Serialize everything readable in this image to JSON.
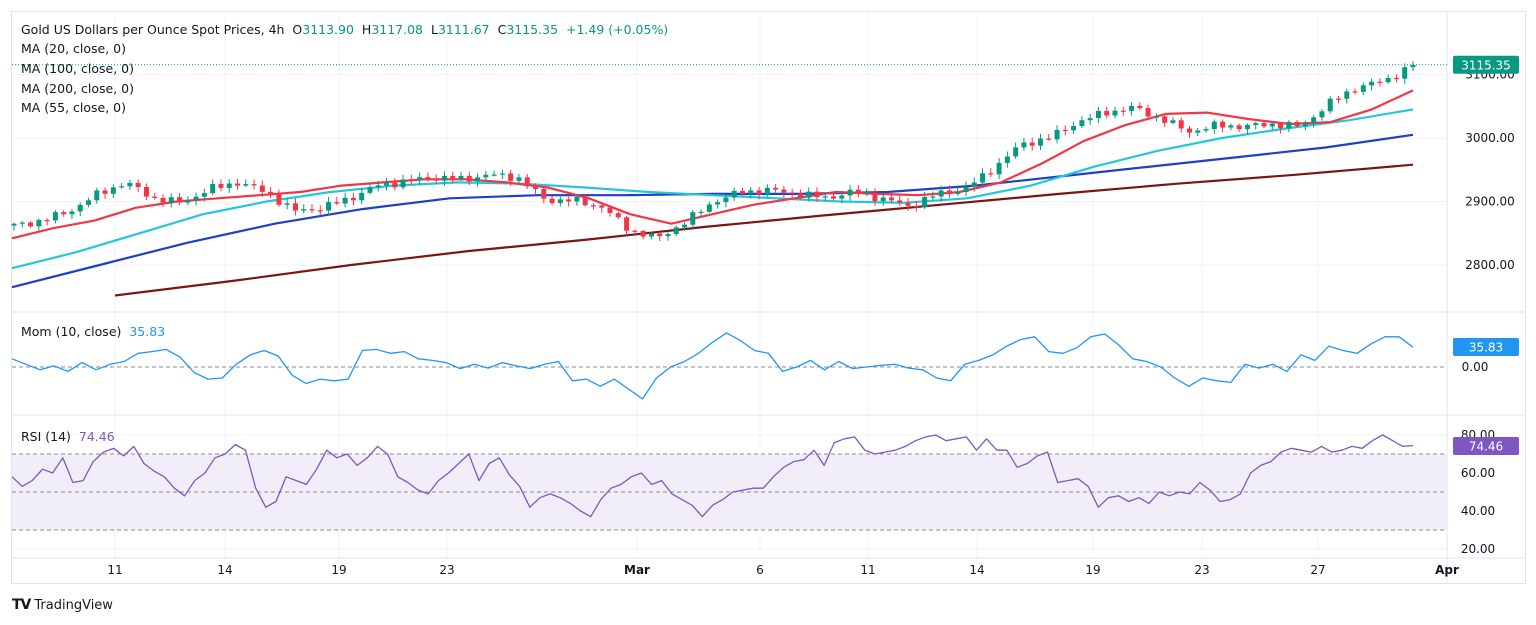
{
  "header": {
    "title": "Gold US Dollars per Ounce Spot Prices, 4h",
    "open_label": "O",
    "open": "3113.90",
    "high_label": "H",
    "high": "3117.08",
    "low_label": "L",
    "low": "3111.67",
    "close_label": "C",
    "close": "3115.35",
    "change": "+1.49 (+0.05%)"
  },
  "indicators": {
    "ma20": "MA (20, close, 0)",
    "ma100": "MA (100, close, 0)",
    "ma200": "MA (200, close, 0)",
    "ma55": "MA (55, close, 0)",
    "mom_label": "Mom (10, close)",
    "mom_value": "35.83",
    "rsi_label": "RSI (14)",
    "rsi_value": "74.46"
  },
  "colors": {
    "up": "#089981",
    "down": "#f23645",
    "ma20": "#f23645",
    "ma55": "#26c6da",
    "ma100": "#1e3fc8",
    "ma200": "#7b1416",
    "mom": "#2196f3",
    "rsi": "#7e57c2",
    "rsi_band": "#ede7f6"
  },
  "brand": {
    "name": "TradingView"
  },
  "chart_data": {
    "type": "line",
    "title": "Gold US Dollars per Ounce Spot Prices, 4h",
    "price_axis": {
      "ticks": [
        "2800.00",
        "2900.00",
        "3000.00",
        "3100.00"
      ],
      "ylim": [
        2770,
        3160
      ],
      "last_price": "3115.35"
    },
    "mom_axis": {
      "ticks": [
        "0.00"
      ],
      "last_value": "35.83"
    },
    "rsi_axis": {
      "ticks": [
        "20.00",
        "40.00",
        "60.00",
        "80.00"
      ],
      "levels": [
        30,
        50,
        70
      ],
      "last_value": "74.46"
    },
    "x_ticks": [
      "11",
      "14",
      "19",
      "23",
      "Mar",
      "6",
      "11",
      "14",
      "19",
      "23",
      "27",
      "Apr"
    ],
    "x_ticks_bold": [
      "Mar",
      "Apr"
    ],
    "series": [
      {
        "name": "Close (approx.)",
        "x_frac": [
          0,
          0.02,
          0.04,
          0.06,
          0.08,
          0.1,
          0.12,
          0.14,
          0.16,
          0.18,
          0.2,
          0.22,
          0.24,
          0.26,
          0.28,
          0.3,
          0.32,
          0.34,
          0.36,
          0.38,
          0.4,
          0.42,
          0.44,
          0.46,
          0.48,
          0.5,
          0.52,
          0.54,
          0.56,
          0.58,
          0.6,
          0.62,
          0.64,
          0.66,
          0.68,
          0.7,
          0.72,
          0.74,
          0.76,
          0.78,
          0.8,
          0.82,
          0.84,
          0.86,
          0.88,
          0.9,
          0.92,
          0.94,
          0.96,
          0.98,
          1.0
        ],
        "values": [
          2862,
          2870,
          2885,
          2912,
          2930,
          2905,
          2898,
          2920,
          2930,
          2915,
          2885,
          2890,
          2905,
          2925,
          2932,
          2938,
          2935,
          2942,
          2938,
          2902,
          2902,
          2892,
          2855,
          2842,
          2868,
          2900,
          2915,
          2918,
          2912,
          2906,
          2915,
          2905,
          2892,
          2912,
          2920,
          2952,
          2990,
          3000,
          3025,
          3040,
          3048,
          3030,
          3010,
          3020,
          3018,
          3022,
          3018,
          3055,
          3080,
          3090,
          3115
        ]
      },
      {
        "name": "MA (20)",
        "values": [
          2842,
          2858,
          2870,
          2890,
          2900,
          2905,
          2910,
          2915,
          2925,
          2930,
          2935,
          2935,
          2930,
          2922,
          2905,
          2880,
          2865,
          2880,
          2895,
          2905,
          2915,
          2912,
          2910,
          2915,
          2930,
          2960,
          2995,
          3020,
          3038,
          3040,
          3030,
          3022,
          3025,
          3045,
          3075
        ]
      },
      {
        "name": "MA (55)",
        "values": [
          2795,
          2820,
          2850,
          2880,
          2900,
          2915,
          2925,
          2930,
          2928,
          2922,
          2915,
          2910,
          2905,
          2900,
          2898,
          2905,
          2925,
          2955,
          2980,
          3000,
          3015,
          3028,
          3045
        ]
      },
      {
        "name": "MA (100)",
        "values": [
          2765,
          2800,
          2835,
          2865,
          2888,
          2905,
          2910,
          2910,
          2912,
          2912,
          2915,
          2925,
          2940,
          2955,
          2970,
          2985,
          3005
        ]
      },
      {
        "name": "MA (200)",
        "values": [
          2752,
          2775,
          2800,
          2822,
          2840,
          2860,
          2878,
          2895,
          2912,
          2928,
          2942,
          2958
        ]
      },
      {
        "name": "Momentum (10)",
        "values": [
          15,
          5,
          -5,
          2,
          -8,
          8,
          -5,
          5,
          10,
          25,
          28,
          32,
          18,
          -10,
          -22,
          -20,
          5,
          22,
          30,
          20,
          -15,
          -30,
          -22,
          -25,
          -22,
          30,
          32,
          25,
          28,
          15,
          12,
          8,
          -3,
          5,
          -2,
          8,
          2,
          -3,
          5,
          10,
          -25,
          -22,
          -35,
          -22,
          -40,
          -58,
          -20,
          0,
          10,
          25,
          45,
          62,
          48,
          30,
          25,
          -8,
          0,
          12,
          -5,
          10,
          -3,
          0,
          3,
          5,
          -2,
          -5,
          -20,
          -25,
          5,
          12,
          22,
          38,
          50,
          55,
          28,
          25,
          35,
          55,
          60,
          40,
          15,
          10,
          0,
          -20,
          -35,
          -20,
          -25,
          -28,
          5,
          -2,
          5,
          -8,
          22,
          12,
          38,
          30,
          25,
          42,
          55,
          55,
          36
        ]
      },
      {
        "name": "RSI (14)",
        "values": [
          58,
          53,
          56,
          62,
          60,
          68,
          55,
          56,
          66,
          71,
          73,
          69,
          74,
          65,
          61,
          58,
          52,
          48,
          56,
          60,
          68,
          70,
          75,
          72,
          52,
          42,
          45,
          58,
          56,
          54,
          62,
          72,
          68,
          70,
          64,
          68,
          74,
          70,
          58,
          55,
          51,
          49,
          56,
          60,
          65,
          70,
          56,
          65,
          68,
          59,
          53,
          42,
          47,
          49,
          47,
          44,
          40,
          37,
          46,
          52,
          54,
          58,
          60,
          54,
          56,
          49,
          46,
          43,
          37,
          43,
          46,
          50,
          51,
          52,
          52,
          58,
          63,
          66,
          67,
          72,
          64,
          76,
          78,
          79,
          72,
          70,
          71,
          72,
          74,
          77,
          79,
          80,
          77,
          78,
          79,
          72,
          78,
          72,
          72,
          63,
          65,
          69,
          71,
          55,
          56,
          57,
          53,
          42,
          47,
          48,
          45,
          47,
          44,
          50,
          48,
          50,
          49,
          55,
          51,
          45,
          46,
          49,
          60,
          64,
          66,
          71,
          73,
          72,
          71,
          74,
          71,
          72,
          74,
          73,
          77,
          80,
          77,
          74,
          74.46
        ]
      }
    ]
  }
}
